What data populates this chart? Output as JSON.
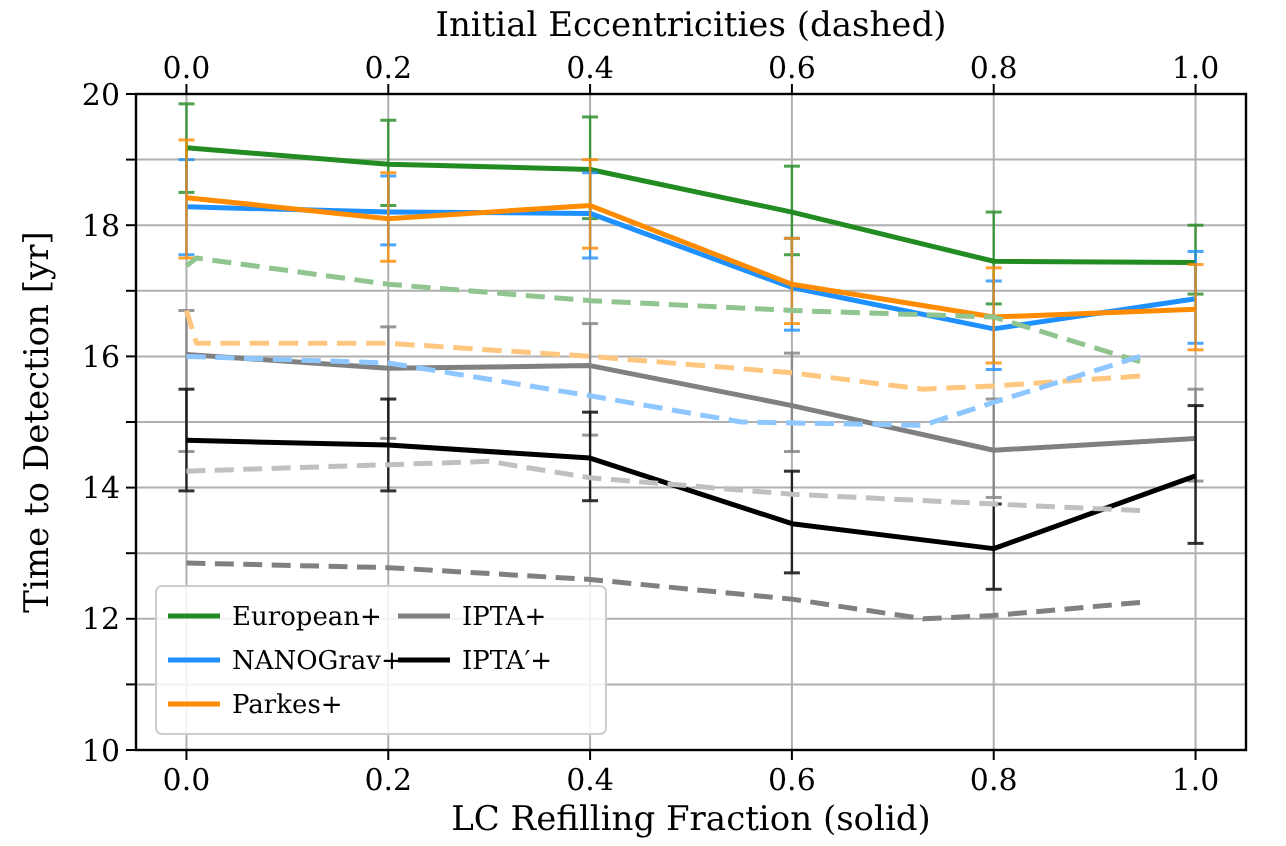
{
  "chart_data": {
    "type": "line",
    "xlabel": "LC Refilling Fraction (solid)",
    "x2label": "Initial Eccentricities (dashed)",
    "ylabel": "Time to Detection [yr]",
    "x": [
      0,
      0.2,
      0.4,
      0.6,
      0.8,
      1.0
    ],
    "xlim": [
      -0.05,
      1.05
    ],
    "xticks": [
      {
        "value": 0,
        "label": "0.0"
      },
      {
        "value": 0.2,
        "label": "0.2"
      },
      {
        "value": 0.4,
        "label": "0.4"
      },
      {
        "value": 0.6,
        "label": "0.6"
      },
      {
        "value": 0.8,
        "label": "0.8"
      },
      {
        "value": 1,
        "label": "1.0"
      }
    ],
    "x2lim": [
      -0.05,
      1.05
    ],
    "x2ticks": [
      {
        "value": 0,
        "label": "0.0"
      },
      {
        "value": 0.2,
        "label": "0.2"
      },
      {
        "value": 0.4,
        "label": "0.4"
      },
      {
        "value": 0.6,
        "label": "0.6"
      },
      {
        "value": 0.8,
        "label": "0.8"
      },
      {
        "value": 1,
        "label": "1.0"
      }
    ],
    "ylim": [
      10,
      20
    ],
    "yticks": [
      10,
      {
        "value": 11,
        "label": null
      },
      12,
      {
        "value": 13,
        "label": null
      },
      14,
      {
        "value": 15,
        "label": null
      },
      16,
      {
        "value": 17,
        "label": null
      },
      18,
      {
        "value": 19,
        "label": null
      },
      20
    ],
    "grid": true,
    "legend": "bottom left",
    "marker": "none",
    "series": [
      {
        "name": "European+",
        "color": "#228b22",
        "line_style": "solid",
        "values": [
          19.18,
          18.93,
          18.85,
          18.2,
          17.45,
          17.43
        ],
        "errors": [
          [
            18.5,
            19.85
          ],
          [
            18.3,
            19.6
          ],
          [
            18.1,
            19.65
          ],
          [
            17.55,
            18.9
          ],
          [
            16.8,
            18.2
          ],
          [
            16.95,
            18.0
          ]
        ]
      },
      {
        "name": "NANOGrav+",
        "color": "#1e90ff",
        "line_style": "solid",
        "values": [
          18.28,
          18.2,
          18.18,
          17.05,
          16.42,
          16.88
        ],
        "errors": [
          [
            17.55,
            19.0
          ],
          [
            17.7,
            18.75
          ],
          [
            17.5,
            18.8
          ],
          [
            16.4,
            17.8
          ],
          [
            15.8,
            17.15
          ],
          [
            16.2,
            17.6
          ]
        ]
      },
      {
        "name": "Parkes+",
        "color": "#ff8c00",
        "line_style": "solid",
        "values": [
          18.42,
          18.1,
          18.3,
          17.1,
          16.6,
          16.72
        ],
        "errors": [
          [
            17.5,
            19.3
          ],
          [
            17.45,
            18.8
          ],
          [
            17.65,
            19.0
          ],
          [
            16.5,
            17.8
          ],
          [
            15.9,
            17.35
          ],
          [
            16.1,
            17.4
          ]
        ]
      },
      {
        "name": "IPTA+",
        "color": "#808080",
        "line_style": "solid",
        "values": [
          16.03,
          15.82,
          15.86,
          15.25,
          14.57,
          14.75
        ],
        "errors": [
          [
            14.55,
            16.7
          ],
          [
            14.75,
            16.45
          ],
          [
            14.8,
            16.5
          ],
          [
            14.55,
            16.05
          ],
          [
            13.85,
            15.35
          ],
          [
            14.1,
            15.5
          ]
        ]
      },
      {
        "name": "IPTA′+",
        "color": "#000000",
        "line_style": "solid",
        "values": [
          14.72,
          14.65,
          14.45,
          13.45,
          13.07,
          14.18
        ],
        "errors": [
          [
            13.95,
            15.5
          ],
          [
            13.95,
            15.35
          ],
          [
            13.8,
            15.15
          ],
          [
            12.7,
            14.25
          ],
          [
            12.45,
            13.75
          ],
          [
            13.15,
            15.25
          ]
        ]
      },
      {
        "color": "#90c590",
        "line_style": "dashed",
        "x": [
          0,
          0.01,
          0.2,
          0.4,
          0.6,
          0.8,
          0.945
        ],
        "values": [
          17.38,
          17.5,
          17.1,
          16.85,
          16.7,
          16.6,
          15.92
        ]
      },
      {
        "color": "#ffc67f",
        "line_style": "dashed",
        "x": [
          0,
          0.01,
          0.2,
          0.4,
          0.6,
          0.73,
          0.8,
          0.945
        ],
        "values": [
          16.7,
          16.2,
          16.2,
          16.0,
          15.75,
          15.5,
          15.55,
          15.7
        ]
      },
      {
        "color": "#8ec7ff",
        "line_style": "dashed",
        "x": [
          0,
          0.2,
          0.4,
          0.55,
          0.73,
          0.8,
          0.945
        ],
        "values": [
          16.0,
          15.9,
          15.4,
          15.0,
          14.95,
          15.3,
          16.0
        ]
      },
      {
        "color": "#c0c0c0",
        "line_style": "dashed",
        "x": [
          0,
          0.2,
          0.3,
          0.4,
          0.6,
          0.8,
          0.945
        ],
        "values": [
          14.25,
          14.35,
          14.4,
          14.15,
          13.9,
          13.75,
          13.65
        ]
      },
      {
        "color": "#808080",
        "line_style": "dashed",
        "x": [
          0,
          0.2,
          0.4,
          0.6,
          0.73,
          0.8,
          0.945
        ],
        "values": [
          12.85,
          12.78,
          12.6,
          12.3,
          12.0,
          12.05,
          12.25
        ]
      }
    ]
  }
}
